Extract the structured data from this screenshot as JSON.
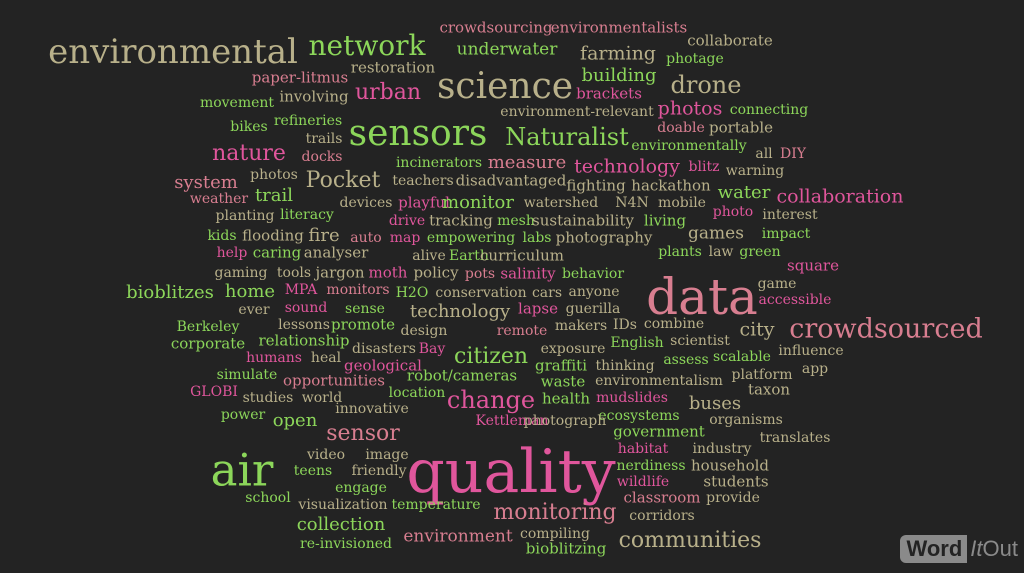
{
  "watermark": {
    "main": "Word",
    "italic": "It",
    "tail": "Out"
  },
  "colors": {
    "background": "#232323",
    "pink": "#e0569c",
    "green": "#8cd65a",
    "tan": "#b8b08a",
    "rose": "#d87e90"
  },
  "words": [
    {
      "t": "environmental",
      "c": "#b8b08a"
    },
    {
      "t": "network",
      "c": "#8cd65a"
    },
    {
      "t": "crowdsourcing",
      "c": "#d87e90"
    },
    {
      "t": "environmentalists",
      "c": "#d87e90"
    },
    {
      "t": "underwater",
      "c": "#8cd65a"
    },
    {
      "t": "farming",
      "c": "#b8b08a"
    },
    {
      "t": "collaborate",
      "c": "#b8b08a"
    },
    {
      "t": "photage",
      "c": "#8cd65a"
    },
    {
      "t": "restoration",
      "c": "#b8b08a"
    },
    {
      "t": "building",
      "c": "#8cd65a"
    },
    {
      "t": "paper-litmus",
      "c": "#d87e90"
    },
    {
      "t": "science",
      "c": "#b8b08a"
    },
    {
      "t": "drone",
      "c": "#b8b08a"
    },
    {
      "t": "urban",
      "c": "#e0569c"
    },
    {
      "t": "brackets",
      "c": "#e0569c"
    },
    {
      "t": "involving",
      "c": "#b8b08a"
    },
    {
      "t": "movement",
      "c": "#8cd65a"
    },
    {
      "t": "photos",
      "c": "#e0569c"
    },
    {
      "t": "connecting",
      "c": "#8cd65a"
    },
    {
      "t": "environment-relevant",
      "c": "#b8b08a"
    },
    {
      "t": "refineries",
      "c": "#8cd65a"
    },
    {
      "t": "bikes",
      "c": "#8cd65a"
    },
    {
      "t": "sensors",
      "c": "#8cd65a"
    },
    {
      "t": "Naturalist",
      "c": "#8cd65a"
    },
    {
      "t": "doable",
      "c": "#d87e90"
    },
    {
      "t": "portable",
      "c": "#b8b08a"
    },
    {
      "t": "trails",
      "c": "#b8b08a"
    },
    {
      "t": "environmentally",
      "c": "#8cd65a"
    },
    {
      "t": "nature",
      "c": "#e0569c"
    },
    {
      "t": "docks",
      "c": "#d87e90"
    },
    {
      "t": "all",
      "c": "#b8b08a"
    },
    {
      "t": "DIY",
      "c": "#d87e90"
    },
    {
      "t": "incinerators",
      "c": "#8cd65a"
    },
    {
      "t": "measure",
      "c": "#d87e90"
    },
    {
      "t": "technology",
      "c": "#e0569c"
    },
    {
      "t": "blitz",
      "c": "#e0569c"
    },
    {
      "t": "warning",
      "c": "#b8b08a"
    },
    {
      "t": "system",
      "c": "#d87e90"
    },
    {
      "t": "photos",
      "c": "#b8b08a"
    },
    {
      "t": "Pocket",
      "c": "#b8b08a"
    },
    {
      "t": "teachers",
      "c": "#b8b08a"
    },
    {
      "t": "disadvantaged",
      "c": "#b8b08a"
    },
    {
      "t": "fighting",
      "c": "#b8b08a"
    },
    {
      "t": "hackathon",
      "c": "#b8b08a"
    },
    {
      "t": "water",
      "c": "#8cd65a"
    },
    {
      "t": "weather",
      "c": "#d87e90"
    },
    {
      "t": "trail",
      "c": "#8cd65a"
    },
    {
      "t": "devices",
      "c": "#b8b08a"
    },
    {
      "t": "playful",
      "c": "#e0569c"
    },
    {
      "t": "monitor",
      "c": "#8cd65a"
    },
    {
      "t": "watershed",
      "c": "#b8b08a"
    },
    {
      "t": "N4N",
      "c": "#b8b08a"
    },
    {
      "t": "mobile",
      "c": "#b8b08a"
    },
    {
      "t": "collaboration",
      "c": "#e0569c"
    },
    {
      "t": "planting",
      "c": "#b8b08a"
    },
    {
      "t": "literacy",
      "c": "#8cd65a"
    },
    {
      "t": "drive",
      "c": "#e0569c"
    },
    {
      "t": "tracking",
      "c": "#b8b08a"
    },
    {
      "t": "mesh",
      "c": "#8cd65a"
    },
    {
      "t": "sustainability",
      "c": "#b8b08a"
    },
    {
      "t": "living",
      "c": "#8cd65a"
    },
    {
      "t": "photo",
      "c": "#e0569c"
    },
    {
      "t": "interest",
      "c": "#b8b08a"
    },
    {
      "t": "kids",
      "c": "#8cd65a"
    },
    {
      "t": "flooding",
      "c": "#b8b08a"
    },
    {
      "t": "fire",
      "c": "#b8b08a"
    },
    {
      "t": "auto",
      "c": "#d87e90"
    },
    {
      "t": "map",
      "c": "#e0569c"
    },
    {
      "t": "empowering",
      "c": "#8cd65a"
    },
    {
      "t": "labs",
      "c": "#8cd65a"
    },
    {
      "t": "photography",
      "c": "#b8b08a"
    },
    {
      "t": "games",
      "c": "#b8b08a"
    },
    {
      "t": "impact",
      "c": "#8cd65a"
    },
    {
      "t": "help",
      "c": "#e0569c"
    },
    {
      "t": "caring",
      "c": "#8cd65a"
    },
    {
      "t": "analyser",
      "c": "#b8b08a"
    },
    {
      "t": "alive",
      "c": "#b8b08a"
    },
    {
      "t": "Earth",
      "c": "#8cd65a"
    },
    {
      "t": "curriculum",
      "c": "#b8b08a"
    },
    {
      "t": "plants",
      "c": "#8cd65a"
    },
    {
      "t": "law",
      "c": "#b8b08a"
    },
    {
      "t": "green",
      "c": "#8cd65a"
    },
    {
      "t": "gaming",
      "c": "#b8b08a"
    },
    {
      "t": "tools",
      "c": "#b8b08a"
    },
    {
      "t": "jargon",
      "c": "#b8b08a"
    },
    {
      "t": "moth",
      "c": "#e0569c"
    },
    {
      "t": "policy",
      "c": "#b8b08a"
    },
    {
      "t": "pots",
      "c": "#d87e90"
    },
    {
      "t": "salinity",
      "c": "#e0569c"
    },
    {
      "t": "behavior",
      "c": "#8cd65a"
    },
    {
      "t": "square",
      "c": "#e0569c"
    },
    {
      "t": "data",
      "c": "#d87e90"
    },
    {
      "t": "game",
      "c": "#b8b08a"
    },
    {
      "t": "bioblitzes",
      "c": "#8cd65a"
    },
    {
      "t": "home",
      "c": "#8cd65a"
    },
    {
      "t": "MPA",
      "c": "#e0569c"
    },
    {
      "t": "monitors",
      "c": "#d87e90"
    },
    {
      "t": "H2O",
      "c": "#8cd65a"
    },
    {
      "t": "conservation",
      "c": "#b8b08a"
    },
    {
      "t": "cars",
      "c": "#b8b08a"
    },
    {
      "t": "anyone",
      "c": "#b8b08a"
    },
    {
      "t": "accessible",
      "c": "#e0569c"
    },
    {
      "t": "ever",
      "c": "#b8b08a"
    },
    {
      "t": "sound",
      "c": "#e0569c"
    },
    {
      "t": "sense",
      "c": "#8cd65a"
    },
    {
      "t": "technology",
      "c": "#b8b08a"
    },
    {
      "t": "lapse",
      "c": "#e0569c"
    },
    {
      "t": "guerilla",
      "c": "#b8b08a"
    },
    {
      "t": "Berkeley",
      "c": "#8cd65a"
    },
    {
      "t": "lessons",
      "c": "#b8b08a"
    },
    {
      "t": "promote",
      "c": "#8cd65a"
    },
    {
      "t": "design",
      "c": "#b8b08a"
    },
    {
      "t": "remote",
      "c": "#d87e90"
    },
    {
      "t": "makers",
      "c": "#b8b08a"
    },
    {
      "t": "IDs",
      "c": "#b8b08a"
    },
    {
      "t": "combine",
      "c": "#b8b08a"
    },
    {
      "t": "city",
      "c": "#b8b08a"
    },
    {
      "t": "crowdsourced",
      "c": "#d87e90"
    },
    {
      "t": "corporate",
      "c": "#8cd65a"
    },
    {
      "t": "relationship",
      "c": "#8cd65a"
    },
    {
      "t": "disasters",
      "c": "#b8b08a"
    },
    {
      "t": "Bay",
      "c": "#e0569c"
    },
    {
      "t": "citizen",
      "c": "#8cd65a"
    },
    {
      "t": "exposure",
      "c": "#b8b08a"
    },
    {
      "t": "English",
      "c": "#8cd65a"
    },
    {
      "t": "scientist",
      "c": "#b8b08a"
    },
    {
      "t": "influence",
      "c": "#b8b08a"
    },
    {
      "t": "humans",
      "c": "#e0569c"
    },
    {
      "t": "heal",
      "c": "#b8b08a"
    },
    {
      "t": "geological",
      "c": "#e0569c"
    },
    {
      "t": "graffiti",
      "c": "#8cd65a"
    },
    {
      "t": "thinking",
      "c": "#b8b08a"
    },
    {
      "t": "assess",
      "c": "#8cd65a"
    },
    {
      "t": "scalable",
      "c": "#8cd65a"
    },
    {
      "t": "app",
      "c": "#b8b08a"
    },
    {
      "t": "simulate",
      "c": "#8cd65a"
    },
    {
      "t": "opportunities",
      "c": "#d87e90"
    },
    {
      "t": "robot/cameras",
      "c": "#8cd65a"
    },
    {
      "t": "waste",
      "c": "#8cd65a"
    },
    {
      "t": "environmentalism",
      "c": "#b8b08a"
    },
    {
      "t": "platform",
      "c": "#b8b08a"
    },
    {
      "t": "GLOBI",
      "c": "#e0569c"
    },
    {
      "t": "studies",
      "c": "#b8b08a"
    },
    {
      "t": "world",
      "c": "#b8b08a"
    },
    {
      "t": "location",
      "c": "#8cd65a"
    },
    {
      "t": "change",
      "c": "#e0569c"
    },
    {
      "t": "health",
      "c": "#8cd65a"
    },
    {
      "t": "mudslides",
      "c": "#e0569c"
    },
    {
      "t": "buses",
      "c": "#b8b08a"
    },
    {
      "t": "taxon",
      "c": "#b8b08a"
    },
    {
      "t": "power",
      "c": "#8cd65a"
    },
    {
      "t": "innovative",
      "c": "#b8b08a"
    },
    {
      "t": "ecosystems",
      "c": "#8cd65a"
    },
    {
      "t": "organisms",
      "c": "#b8b08a"
    },
    {
      "t": "open",
      "c": "#8cd65a"
    },
    {
      "t": "Kettleman",
      "c": "#e0569c"
    },
    {
      "t": "photograph",
      "c": "#b8b08a"
    },
    {
      "t": "sensor",
      "c": "#d87e90"
    },
    {
      "t": "government",
      "c": "#8cd65a"
    },
    {
      "t": "translates",
      "c": "#b8b08a"
    },
    {
      "t": "habitat",
      "c": "#e0569c"
    },
    {
      "t": "industry",
      "c": "#b8b08a"
    },
    {
      "t": "video",
      "c": "#b8b08a"
    },
    {
      "t": "image",
      "c": "#b8b08a"
    },
    {
      "t": "air",
      "c": "#8cd65a"
    },
    {
      "t": "quality",
      "c": "#e0569c"
    },
    {
      "t": "nerdiness",
      "c": "#8cd65a"
    },
    {
      "t": "household",
      "c": "#b8b08a"
    },
    {
      "t": "teens",
      "c": "#8cd65a"
    },
    {
      "t": "friendly",
      "c": "#b8b08a"
    },
    {
      "t": "wildlife",
      "c": "#e0569c"
    },
    {
      "t": "students",
      "c": "#b8b08a"
    },
    {
      "t": "engage",
      "c": "#8cd65a"
    },
    {
      "t": "classroom",
      "c": "#d87e90"
    },
    {
      "t": "provide",
      "c": "#b8b08a"
    },
    {
      "t": "school",
      "c": "#8cd65a"
    },
    {
      "t": "visualization",
      "c": "#b8b08a"
    },
    {
      "t": "temperature",
      "c": "#8cd65a"
    },
    {
      "t": "monitoring",
      "c": "#d87e90"
    },
    {
      "t": "corridors",
      "c": "#b8b08a"
    },
    {
      "t": "collection",
      "c": "#8cd65a"
    },
    {
      "t": "compiling",
      "c": "#b8b08a"
    },
    {
      "t": "re-invisioned",
      "c": "#8cd65a"
    },
    {
      "t": "environment",
      "c": "#d87e90"
    },
    {
      "t": "bioblitzing",
      "c": "#8cd65a"
    },
    {
      "t": "communities",
      "c": "#b8b08a"
    }
  ]
}
